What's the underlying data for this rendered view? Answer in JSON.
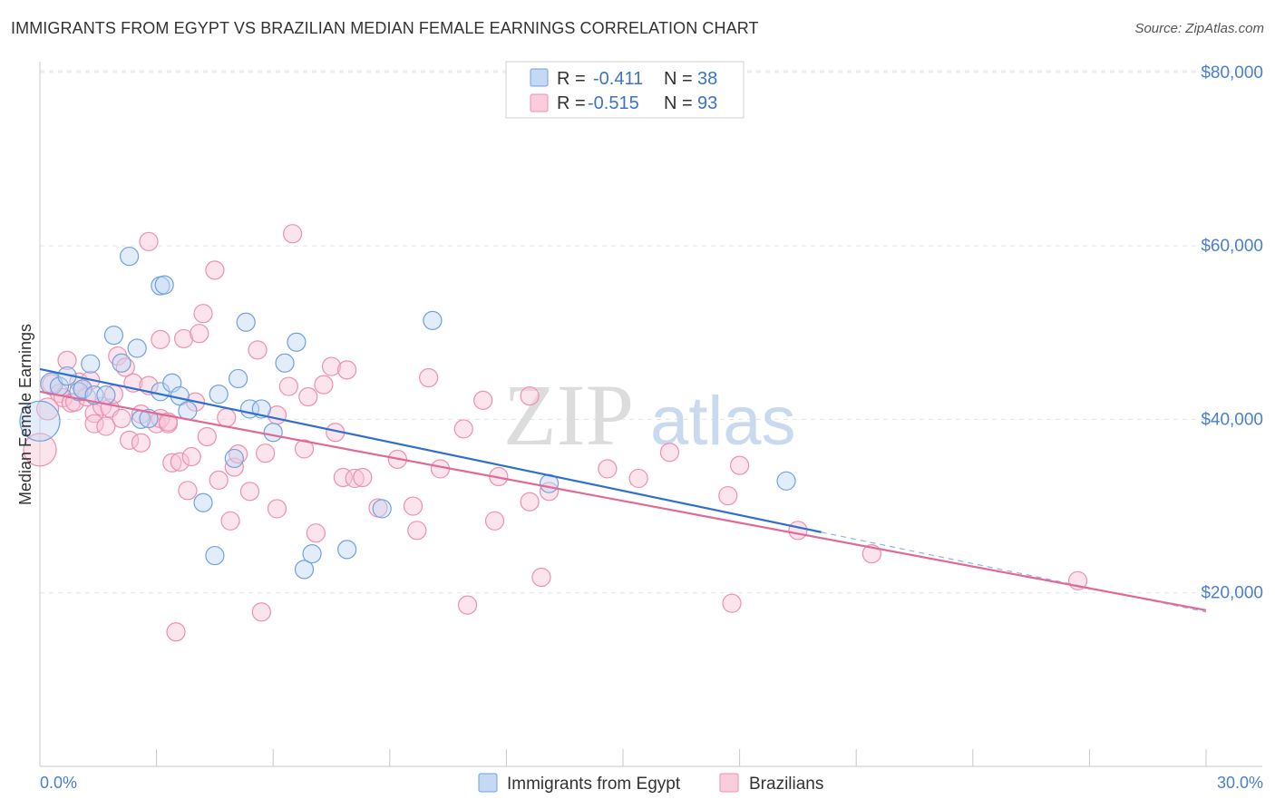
{
  "header": {
    "title": "IMMIGRANTS FROM EGYPT VS BRAZILIAN MEDIAN FEMALE EARNINGS CORRELATION CHART",
    "source": "Source: ZipAtlas.com"
  },
  "watermark": {
    "zip": "ZIP",
    "atlas": "atlas"
  },
  "legend_top": {
    "rows": [
      {
        "r_label": "R =",
        "r_value": "-0.411",
        "n_label": "N =",
        "n_value": "38",
        "color": "#a8c6f0"
      },
      {
        "r_label": "R =",
        "r_value": "-0.515",
        "n_label": "N =",
        "n_value": "93",
        "color": "#f5b3c8"
      }
    ]
  },
  "legend_bottom": {
    "items": [
      {
        "label": "Immigrants from Egypt",
        "color": "#a8c6f0"
      },
      {
        "label": "Brazilians",
        "color": "#f5b3c8"
      }
    ]
  },
  "chart_data": {
    "type": "scatter",
    "title": "IMMIGRANTS FROM EGYPT VS BRAZILIAN MEDIAN FEMALE EARNINGS CORRELATION CHART",
    "xlabel": "",
    "ylabel": "Median Female Earnings",
    "xlim": [
      0,
      30
    ],
    "ylim": [
      0,
      82000
    ],
    "x_tick_labels": [
      "0.0%",
      "30.0%"
    ],
    "y_tick_labels": [
      "$20,000",
      "$40,000",
      "$60,000",
      "$80,000"
    ],
    "y_ticks": [
      20000,
      40000,
      60000,
      80000
    ],
    "grid": true,
    "colors": {
      "egypt": "#6fa0e0",
      "brazil": "#ee8fb0",
      "egypt_line": "#2f6fcf",
      "brazil_line": "#e06a95"
    },
    "series": [
      {
        "name": "Immigrants from Egypt",
        "trend": {
          "x": [
            0,
            20.1
          ],
          "y": [
            45800,
            27000
          ],
          "dashed_to": [
            30,
            17800
          ]
        },
        "points": [
          [
            0.0,
            39800,
            22
          ],
          [
            0.3,
            44100,
            12
          ],
          [
            0.5,
            43800,
            10
          ],
          [
            0.7,
            45000,
            10
          ],
          [
            1.0,
            43200,
            10
          ],
          [
            1.1,
            43500,
            10
          ],
          [
            1.3,
            46400,
            10
          ],
          [
            1.4,
            42800,
            10
          ],
          [
            1.7,
            42800,
            10
          ],
          [
            1.9,
            49700,
            10
          ],
          [
            2.1,
            46500,
            10
          ],
          [
            2.3,
            58800,
            10
          ],
          [
            2.5,
            48200,
            10
          ],
          [
            2.6,
            40000,
            10
          ],
          [
            2.8,
            40100,
            10
          ],
          [
            3.1,
            55400,
            10
          ],
          [
            3.1,
            43200,
            10
          ],
          [
            3.2,
            55500,
            10
          ],
          [
            3.4,
            44200,
            10
          ],
          [
            3.6,
            42700,
            10
          ],
          [
            3.8,
            41000,
            10
          ],
          [
            4.2,
            30400,
            10
          ],
          [
            4.5,
            24300,
            10
          ],
          [
            4.6,
            42900,
            10
          ],
          [
            5.0,
            35500,
            10
          ],
          [
            5.1,
            44700,
            10
          ],
          [
            5.3,
            51200,
            10
          ],
          [
            5.4,
            41200,
            10
          ],
          [
            5.7,
            41200,
            10
          ],
          [
            6.0,
            38500,
            10
          ],
          [
            6.3,
            46500,
            10
          ],
          [
            6.6,
            48900,
            10
          ],
          [
            6.8,
            22700,
            10
          ],
          [
            7.0,
            24500,
            10
          ],
          [
            7.9,
            25000,
            10
          ],
          [
            8.8,
            29700,
            10
          ],
          [
            10.1,
            51400,
            10
          ],
          [
            13.1,
            32600,
            10
          ],
          [
            19.2,
            32900,
            10
          ]
        ]
      },
      {
        "name": "Brazilians",
        "trend": {
          "x": [
            0,
            30
          ],
          "y": [
            43200,
            18000
          ]
        },
        "points": [
          [
            0.0,
            36500,
            18
          ],
          [
            0.2,
            41200,
            12
          ],
          [
            0.3,
            44100,
            10
          ],
          [
            0.5,
            43000,
            10
          ],
          [
            0.6,
            42500,
            10
          ],
          [
            0.7,
            46800,
            10
          ],
          [
            0.8,
            41900,
            10
          ],
          [
            0.9,
            42000,
            10
          ],
          [
            1.0,
            44300,
            10
          ],
          [
            1.1,
            43500,
            10
          ],
          [
            1.2,
            42600,
            10
          ],
          [
            1.3,
            44500,
            10
          ],
          [
            1.4,
            40700,
            10
          ],
          [
            1.4,
            39500,
            10
          ],
          [
            1.6,
            41500,
            10
          ],
          [
            1.7,
            39200,
            10
          ],
          [
            1.8,
            41300,
            10
          ],
          [
            1.9,
            42900,
            10
          ],
          [
            2.0,
            47300,
            10
          ],
          [
            2.1,
            40100,
            10
          ],
          [
            2.2,
            46000,
            10
          ],
          [
            2.3,
            37600,
            10
          ],
          [
            2.4,
            44200,
            10
          ],
          [
            2.6,
            40600,
            10
          ],
          [
            2.6,
            37300,
            10
          ],
          [
            2.8,
            43900,
            10
          ],
          [
            2.8,
            60500,
            10
          ],
          [
            3.0,
            39500,
            10
          ],
          [
            3.1,
            40100,
            10
          ],
          [
            3.1,
            49200,
            10
          ],
          [
            3.3,
            39500,
            10
          ],
          [
            3.3,
            39700,
            10
          ],
          [
            3.4,
            35000,
            10
          ],
          [
            3.5,
            15500,
            10
          ],
          [
            3.6,
            35100,
            10
          ],
          [
            3.7,
            49300,
            10
          ],
          [
            3.8,
            31800,
            10
          ],
          [
            3.9,
            35700,
            10
          ],
          [
            4.0,
            42000,
            10
          ],
          [
            4.1,
            49900,
            10
          ],
          [
            4.2,
            52200,
            10
          ],
          [
            4.3,
            38000,
            10
          ],
          [
            4.5,
            57200,
            10
          ],
          [
            4.6,
            33000,
            10
          ],
          [
            4.8,
            40200,
            10
          ],
          [
            4.9,
            28300,
            10
          ],
          [
            5.0,
            34500,
            10
          ],
          [
            5.1,
            36000,
            10
          ],
          [
            5.4,
            31700,
            10
          ],
          [
            5.6,
            48000,
            10
          ],
          [
            5.7,
            17800,
            10
          ],
          [
            5.8,
            36100,
            10
          ],
          [
            6.1,
            40500,
            10
          ],
          [
            6.1,
            29700,
            10
          ],
          [
            6.4,
            43800,
            10
          ],
          [
            6.5,
            61400,
            10
          ],
          [
            6.8,
            36600,
            10
          ],
          [
            6.9,
            42600,
            10
          ],
          [
            7.1,
            26900,
            10
          ],
          [
            7.3,
            44000,
            10
          ],
          [
            7.5,
            46100,
            10
          ],
          [
            7.6,
            38500,
            10
          ],
          [
            7.8,
            33300,
            10
          ],
          [
            7.9,
            45700,
            10
          ],
          [
            8.1,
            33200,
            10
          ],
          [
            8.3,
            33300,
            10
          ],
          [
            8.7,
            29800,
            10
          ],
          [
            9.2,
            35400,
            10
          ],
          [
            9.6,
            30000,
            10
          ],
          [
            9.7,
            27200,
            10
          ],
          [
            10.0,
            44800,
            10
          ],
          [
            10.3,
            34300,
            10
          ],
          [
            10.9,
            38900,
            10
          ],
          [
            11.0,
            18600,
            10
          ],
          [
            11.4,
            42200,
            10
          ],
          [
            11.7,
            28300,
            10
          ],
          [
            11.8,
            33400,
            10
          ],
          [
            12.6,
            30500,
            10
          ],
          [
            12.6,
            42700,
            10
          ],
          [
            12.9,
            21800,
            10
          ],
          [
            13.1,
            31700,
            10
          ],
          [
            14.6,
            34300,
            10
          ],
          [
            15.4,
            33200,
            10
          ],
          [
            16.2,
            36200,
            10
          ],
          [
            17.7,
            31200,
            10
          ],
          [
            17.8,
            18800,
            10
          ],
          [
            18.0,
            34700,
            10
          ],
          [
            19.5,
            27200,
            10
          ],
          [
            21.4,
            24500,
            10
          ],
          [
            26.7,
            21400,
            10
          ]
        ]
      }
    ]
  }
}
